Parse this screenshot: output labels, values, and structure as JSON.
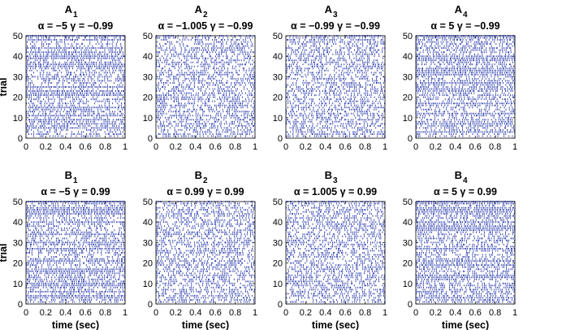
{
  "chart_data": [
    {
      "type": "raster",
      "panel_letter": "A",
      "panel_index": "1",
      "alpha": "−5",
      "gamma": "−0.99",
      "xlim": [
        0,
        1
      ],
      "ylim": [
        0,
        50
      ],
      "xticks": [
        "0",
        "0.2",
        "0.4",
        "0.6",
        "0.8",
        "1"
      ],
      "yticks": [
        "0",
        "10",
        "20",
        "30",
        "40",
        "50"
      ],
      "ylabel": "trial",
      "xlabel": "",
      "n_trials": 50,
      "spike_color": "#2233aa"
    },
    {
      "type": "raster",
      "panel_letter": "A",
      "panel_index": "2",
      "alpha": "−1.005",
      "gamma": "−0.99",
      "xlim": [
        0,
        1
      ],
      "ylim": [
        0,
        50
      ],
      "xticks": [
        "0",
        "0.2",
        "0.4",
        "0.6",
        "0.8",
        "1"
      ],
      "yticks": [
        "0",
        "10",
        "20",
        "30",
        "40",
        "50"
      ],
      "ylabel": "",
      "xlabel": "",
      "n_trials": 50,
      "spike_color": "#2233aa"
    },
    {
      "type": "raster",
      "panel_letter": "A",
      "panel_index": "3",
      "alpha": "−0.99",
      "gamma": "−0.99",
      "xlim": [
        0,
        1
      ],
      "ylim": [
        0,
        50
      ],
      "xticks": [
        "0",
        "0.2",
        "0.4",
        "0.6",
        "0.8",
        "1"
      ],
      "yticks": [
        "0",
        "10",
        "20",
        "30",
        "40",
        "50"
      ],
      "ylabel": "",
      "xlabel": "",
      "n_trials": 50,
      "spike_color": "#2233aa"
    },
    {
      "type": "raster",
      "panel_letter": "A",
      "panel_index": "4",
      "alpha": "5",
      "gamma": "−0.99",
      "xlim": [
        0,
        1
      ],
      "ylim": [
        0,
        50
      ],
      "xticks": [
        "0",
        "0.2",
        "0.4",
        "0.6",
        "0.8",
        "1"
      ],
      "yticks": [
        "0",
        "10",
        "20",
        "30",
        "40",
        "50"
      ],
      "ylabel": "",
      "xlabel": "",
      "n_trials": 50,
      "spike_color": "#2233aa"
    },
    {
      "type": "raster",
      "panel_letter": "B",
      "panel_index": "1",
      "alpha": "−5",
      "gamma": "0.99",
      "xlim": [
        0,
        1
      ],
      "ylim": [
        0,
        50
      ],
      "xticks": [
        "0",
        "0.2",
        "0.4",
        "0.6",
        "0.8",
        "1"
      ],
      "yticks": [
        "0",
        "10",
        "20",
        "30",
        "40",
        "50"
      ],
      "ylabel": "trial",
      "xlabel": "time (sec)",
      "n_trials": 50,
      "spike_color": "#2233aa"
    },
    {
      "type": "raster",
      "panel_letter": "B",
      "panel_index": "2",
      "alpha": "0.99",
      "gamma": "0.99",
      "xlim": [
        0,
        1
      ],
      "ylim": [
        0,
        50
      ],
      "xticks": [
        "0",
        "0.2",
        "0.4",
        "0.6",
        "0.8",
        "1"
      ],
      "yticks": [
        "0",
        "10",
        "20",
        "30",
        "40",
        "50"
      ],
      "ylabel": "",
      "xlabel": "time (sec)",
      "n_trials": 50,
      "spike_color": "#2233aa"
    },
    {
      "type": "raster",
      "panel_letter": "B",
      "panel_index": "3",
      "alpha": "1.005",
      "gamma": "0.99",
      "xlim": [
        0,
        1
      ],
      "ylim": [
        0,
        50
      ],
      "xticks": [
        "0",
        "0.2",
        "0.4",
        "0.6",
        "0.8",
        "1"
      ],
      "yticks": [
        "0",
        "10",
        "20",
        "30",
        "40",
        "50"
      ],
      "ylabel": "",
      "xlabel": "time (sec)",
      "n_trials": 50,
      "spike_color": "#2233aa"
    },
    {
      "type": "raster",
      "panel_letter": "B",
      "panel_index": "4",
      "alpha": "5",
      "gamma": "0.99",
      "xlim": [
        0,
        1
      ],
      "ylim": [
        0,
        50
      ],
      "xticks": [
        "0",
        "0.2",
        "0.4",
        "0.6",
        "0.8",
        "1"
      ],
      "yticks": [
        "0",
        "10",
        "20",
        "30",
        "40",
        "50"
      ],
      "ylabel": "",
      "xlabel": "time (sec)",
      "n_trials": 50,
      "spike_color": "#2233aa"
    }
  ]
}
